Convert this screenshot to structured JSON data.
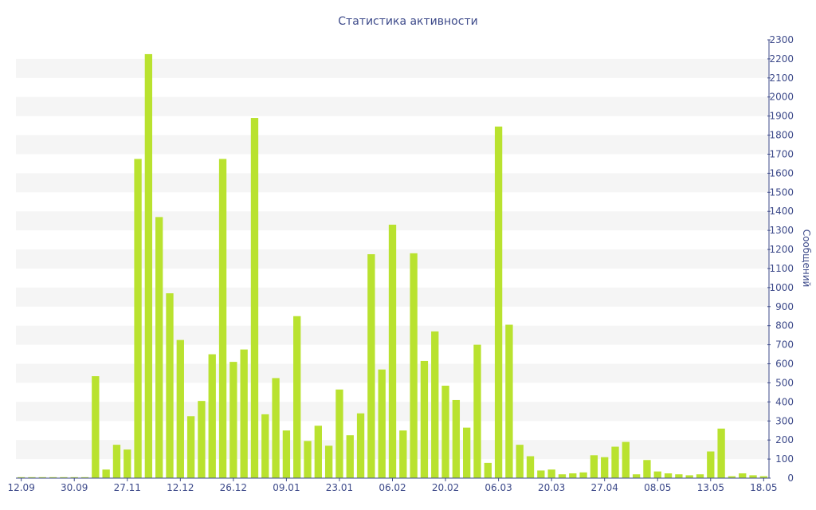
{
  "chart_data": {
    "type": "bar",
    "title": "Статистика активности",
    "xlabel": "",
    "ylabel": "Сообщений",
    "ylim": [
      0,
      2300
    ],
    "y_ticks": [
      0,
      100,
      200,
      300,
      400,
      500,
      600,
      700,
      800,
      900,
      1000,
      1100,
      1200,
      1300,
      1400,
      1500,
      1600,
      1700,
      1800,
      1900,
      2000,
      2100,
      2200,
      2300
    ],
    "grid": "alternating-bands",
    "bar_color": "#b9e22f",
    "x_tick_labels": [
      {
        "index": 0,
        "label": "12.09"
      },
      {
        "index": 5,
        "label": "30.09"
      },
      {
        "index": 10,
        "label": "27.11"
      },
      {
        "index": 15,
        "label": "12.12"
      },
      {
        "index": 20,
        "label": "26.12"
      },
      {
        "index": 25,
        "label": "09.01"
      },
      {
        "index": 30,
        "label": "23.01"
      },
      {
        "index": 35,
        "label": "06.02"
      },
      {
        "index": 40,
        "label": "20.02"
      },
      {
        "index": 45,
        "label": "06.03"
      },
      {
        "index": 50,
        "label": "20.03"
      },
      {
        "index": 55,
        "label": "27.04"
      },
      {
        "index": 60,
        "label": "08.05"
      },
      {
        "index": 65,
        "label": "13.05"
      },
      {
        "index": 70,
        "label": "18.05"
      }
    ],
    "values": [
      5,
      5,
      5,
      5,
      5,
      5,
      5,
      535,
      45,
      175,
      150,
      1675,
      2225,
      1370,
      970,
      725,
      325,
      405,
      650,
      1675,
      610,
      675,
      1890,
      335,
      525,
      250,
      850,
      195,
      275,
      170,
      465,
      225,
      340,
      1175,
      570,
      1330,
      250,
      1180,
      615,
      770,
      485,
      410,
      265,
      700,
      80,
      1845,
      805,
      175,
      115,
      40,
      45,
      20,
      25,
      30,
      120,
      110,
      165,
      190,
      20,
      95,
      35,
      25,
      20,
      15,
      20,
      140,
      260,
      10,
      25,
      15,
      10
    ]
  }
}
